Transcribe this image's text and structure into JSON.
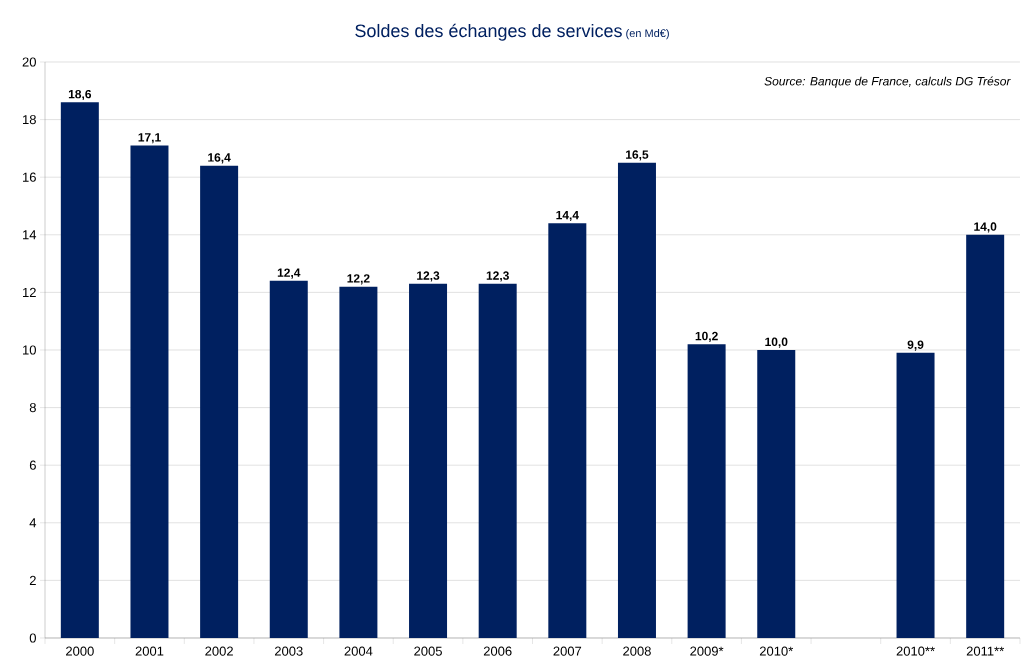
{
  "chart_data": {
    "type": "bar",
    "title": "Soldes des échanges de services",
    "subtitle": "(en Md€)",
    "categories": [
      "2000",
      "2001",
      "2002",
      "2003",
      "2004",
      "2005",
      "2006",
      "2007",
      "2008",
      "2009*",
      "2010*",
      null,
      "2010**",
      "2011**"
    ],
    "values": [
      18.6,
      17.1,
      16.4,
      12.4,
      12.2,
      12.3,
      12.3,
      14.4,
      16.5,
      10.2,
      10.0,
      null,
      9.9,
      14.0
    ],
    "value_labels": [
      "18,6",
      "17,1",
      "16,4",
      "12,4",
      "12,2",
      "12,3",
      "12,3",
      "14,4",
      "16,5",
      "10,2",
      "10,0",
      null,
      "9,9",
      "14,0"
    ],
    "color": "#002060",
    "ylim": [
      0,
      20
    ],
    "yticks": [
      0,
      2,
      4,
      6,
      8,
      10,
      12,
      14,
      16,
      18,
      20
    ],
    "grid": "y",
    "annotations": [
      "Source: Banque de France, calculs DG Trésor"
    ]
  }
}
